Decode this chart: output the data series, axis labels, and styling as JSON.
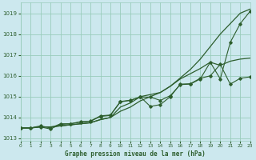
{
  "title": "Graphe pression niveau de la mer (hPa)",
  "bg_color": "#cce8ee",
  "grid_color": "#99ccbb",
  "line_color": "#2d5e2d",
  "xlim": [
    0,
    23
  ],
  "ylim": [
    1012.9,
    1019.5
  ],
  "yticks": [
    1013,
    1014,
    1015,
    1016,
    1017,
    1018,
    1019
  ],
  "xticks": [
    0,
    1,
    2,
    3,
    4,
    5,
    6,
    7,
    8,
    9,
    10,
    11,
    12,
    13,
    14,
    15,
    16,
    17,
    18,
    19,
    20,
    21,
    22,
    23
  ],
  "series_smooth": [
    [
      1013.5,
      1013.5,
      1013.55,
      1013.55,
      1013.6,
      1013.65,
      1013.7,
      1013.75,
      1013.9,
      1014.0,
      1014.5,
      1014.7,
      1015.0,
      1015.1,
      1015.2,
      1015.5,
      1015.9,
      1016.3,
      1016.8,
      1017.4,
      1018.0,
      1018.5,
      1019.0,
      1019.2
    ],
    [
      1013.5,
      1013.5,
      1013.55,
      1013.55,
      1013.6,
      1013.65,
      1013.7,
      1013.75,
      1013.9,
      1014.0,
      1014.3,
      1014.5,
      1014.8,
      1015.0,
      1015.2,
      1015.5,
      1015.85,
      1016.1,
      1016.35,
      1016.65,
      1016.5,
      1016.7,
      1016.8,
      1016.85
    ]
  ],
  "series_markers": [
    [
      1013.5,
      1013.5,
      1013.6,
      1013.5,
      1013.7,
      1013.7,
      1013.8,
      1013.82,
      1014.05,
      1014.1,
      1014.75,
      1014.82,
      1014.98,
      1014.98,
      1014.82,
      1015.05,
      1015.58,
      1015.6,
      1015.85,
      1016.65,
      1015.85,
      1017.6,
      1018.5,
      1019.1
    ],
    [
      1013.5,
      1013.5,
      1013.55,
      1013.45,
      1013.67,
      1013.7,
      1013.78,
      1013.83,
      1014.08,
      1014.12,
      1014.77,
      1014.83,
      1014.99,
      1014.53,
      1014.62,
      1015.0,
      1015.6,
      1015.62,
      1015.88,
      1016.0,
      1016.55,
      1015.6,
      1015.88,
      1015.95
    ]
  ]
}
